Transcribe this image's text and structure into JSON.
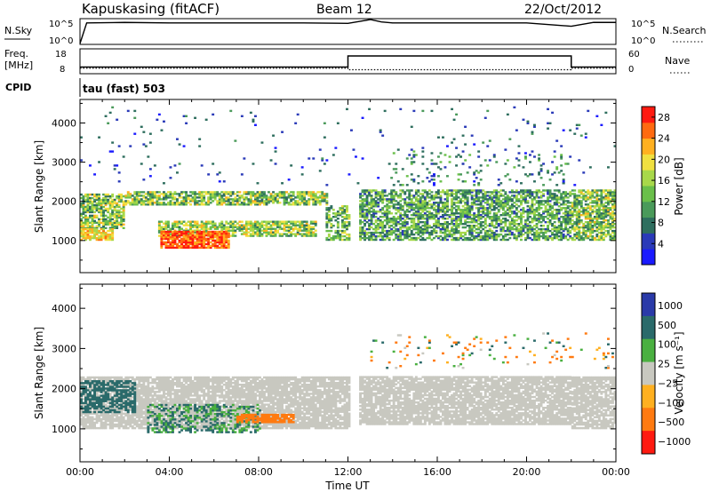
{
  "header": {
    "station": "Kapuskasing (fitACF)",
    "beam": "Beam 12",
    "date": "22/Oct/2012"
  },
  "noise_panel": {
    "left_label": "N.Sky",
    "left_ticks": [
      "10^5",
      "10^0"
    ],
    "right_label": "N.Search",
    "right_ticks": [
      "10^5",
      "10^0"
    ]
  },
  "freq_panel": {
    "left_label_1": "Freq.",
    "left_label_2": "[MHz]",
    "left_ticks": [
      "18",
      "8"
    ],
    "right_label": "Nave",
    "right_ticks": [
      "60",
      "0"
    ]
  },
  "cpid_panel": {
    "label": "CPID",
    "mode": "tau (fast) 503"
  },
  "chart_data": [
    {
      "type": "line",
      "name": "noise",
      "series": [
        {
          "name": "N.Sky",
          "style": "solid",
          "x": [
            0,
            0.3,
            2,
            4,
            6,
            8,
            10,
            12,
            12.5,
            13,
            13.5,
            14,
            16,
            18,
            20,
            22,
            23,
            24
          ],
          "y_log10": [
            0,
            4.3,
            4.4,
            4.3,
            4.3,
            4.3,
            4.3,
            4.2,
            4.6,
            5.0,
            4.5,
            4.3,
            4.3,
            4.3,
            4.3,
            3.6,
            4.4,
            4.4
          ]
        }
      ]
    },
    {
      "type": "line",
      "name": "frequency_nave",
      "series": [
        {
          "name": "Freq.",
          "style": "solid",
          "x": [
            0,
            12,
            12,
            22,
            22,
            24
          ],
          "y": [
            10.5,
            10.5,
            15.3,
            15.3,
            10.5,
            10.5
          ]
        },
        {
          "name": "Nave",
          "style": "dotted",
          "x": [
            0,
            12,
            12,
            22,
            22,
            24
          ],
          "y": [
            12,
            12,
            8,
            8,
            12,
            12
          ]
        }
      ]
    },
    {
      "type": "heatmap",
      "name": "power",
      "xlabel": "",
      "ylabel": "Slant Range [km]",
      "xlim": [
        0,
        24
      ],
      "ylim": [
        180,
        4600
      ],
      "yticks": [
        1000,
        2000,
        3000,
        4000
      ],
      "colorbar": {
        "label": "Power [dB]",
        "ticks": [
          4,
          8,
          12,
          16,
          20,
          24,
          28
        ],
        "range": [
          0,
          30
        ]
      },
      "cell_x": 0.1,
      "cell_y": 45,
      "regions": [
        {
          "t0": 0,
          "t1": 2,
          "r0": 1300,
          "r1": 2200,
          "density": 0.75,
          "p": [
            6,
            22
          ]
        },
        {
          "t0": 0,
          "t1": 1.5,
          "r0": 1000,
          "r1": 1300,
          "density": 0.8,
          "p": [
            16,
            26
          ]
        },
        {
          "t0": 2,
          "t1": 11,
          "r0": 1900,
          "r1": 2250,
          "density": 0.75,
          "p": [
            6,
            22
          ]
        },
        {
          "t0": 3.5,
          "t1": 10.5,
          "r0": 1100,
          "r1": 1500,
          "density": 0.75,
          "p": [
            8,
            22
          ]
        },
        {
          "t0": 3.6,
          "t1": 6.6,
          "r0": 800,
          "r1": 1250,
          "density": 0.9,
          "p": [
            22,
            30
          ]
        },
        {
          "t0": 11,
          "t1": 12,
          "r0": 1000,
          "r1": 1900,
          "density": 0.6,
          "p": [
            6,
            20
          ]
        },
        {
          "t0": 12.5,
          "t1": 22,
          "r0": 1000,
          "r1": 2300,
          "density": 0.65,
          "p": [
            5,
            18
          ]
        },
        {
          "t0": 14,
          "t1": 22,
          "r0": 2400,
          "r1": 3300,
          "density": 0.07,
          "p": [
            4,
            14
          ]
        },
        {
          "t0": 22,
          "t1": 24,
          "r0": 1000,
          "r1": 2300,
          "density": 0.75,
          "p": [
            6,
            22
          ]
        },
        {
          "t0": 0,
          "t1": 24,
          "r0": 2400,
          "r1": 4400,
          "density": 0.02,
          "p": [
            2,
            10
          ]
        }
      ]
    },
    {
      "type": "heatmap",
      "name": "velocity",
      "xlabel": "Time UT",
      "ylabel": "Slant Range [km]",
      "xlim": [
        0,
        24
      ],
      "ylim": [
        180,
        4600
      ],
      "xticks": [
        "00:00",
        "04:00",
        "08:00",
        "12:00",
        "16:00",
        "20:00",
        "00:00"
      ],
      "yticks": [
        1000,
        2000,
        3000,
        4000
      ],
      "colorbar": {
        "label": "Velocity [m s⁻¹]",
        "ticks": [
          "1000",
          "500",
          "100",
          "25",
          "−25",
          "−100",
          "−500",
          "−1000"
        ]
      },
      "ground_scatter_color": "#c8c8c0",
      "cell_x": 0.1,
      "cell_y": 45,
      "regions": [
        {
          "t0": 0,
          "t1": 12,
          "r0": 1000,
          "r1": 2300,
          "density": 0.85,
          "v": "gs"
        },
        {
          "t0": 0,
          "t1": 2.5,
          "r0": 1400,
          "r1": 2200,
          "density": 0.6,
          "v": [
            100,
            500
          ]
        },
        {
          "t0": 3,
          "t1": 8,
          "r0": 900,
          "r1": 1600,
          "density": 0.4,
          "v": [
            25,
            200
          ]
        },
        {
          "t0": 7,
          "t1": 9.5,
          "r0": 1150,
          "r1": 1350,
          "density": 0.8,
          "v": [
            -200,
            -100
          ]
        },
        {
          "t0": 12.5,
          "t1": 22,
          "r0": 1100,
          "r1": 2300,
          "density": 0.85,
          "v": "gs"
        },
        {
          "t0": 22,
          "t1": 24,
          "r0": 1000,
          "r1": 2300,
          "density": 0.8,
          "v": "gs"
        },
        {
          "t0": 13,
          "t1": 24,
          "r0": 2500,
          "r1": 3400,
          "density": 0.05,
          "v": [
            -300,
            200
          ]
        }
      ]
    }
  ]
}
